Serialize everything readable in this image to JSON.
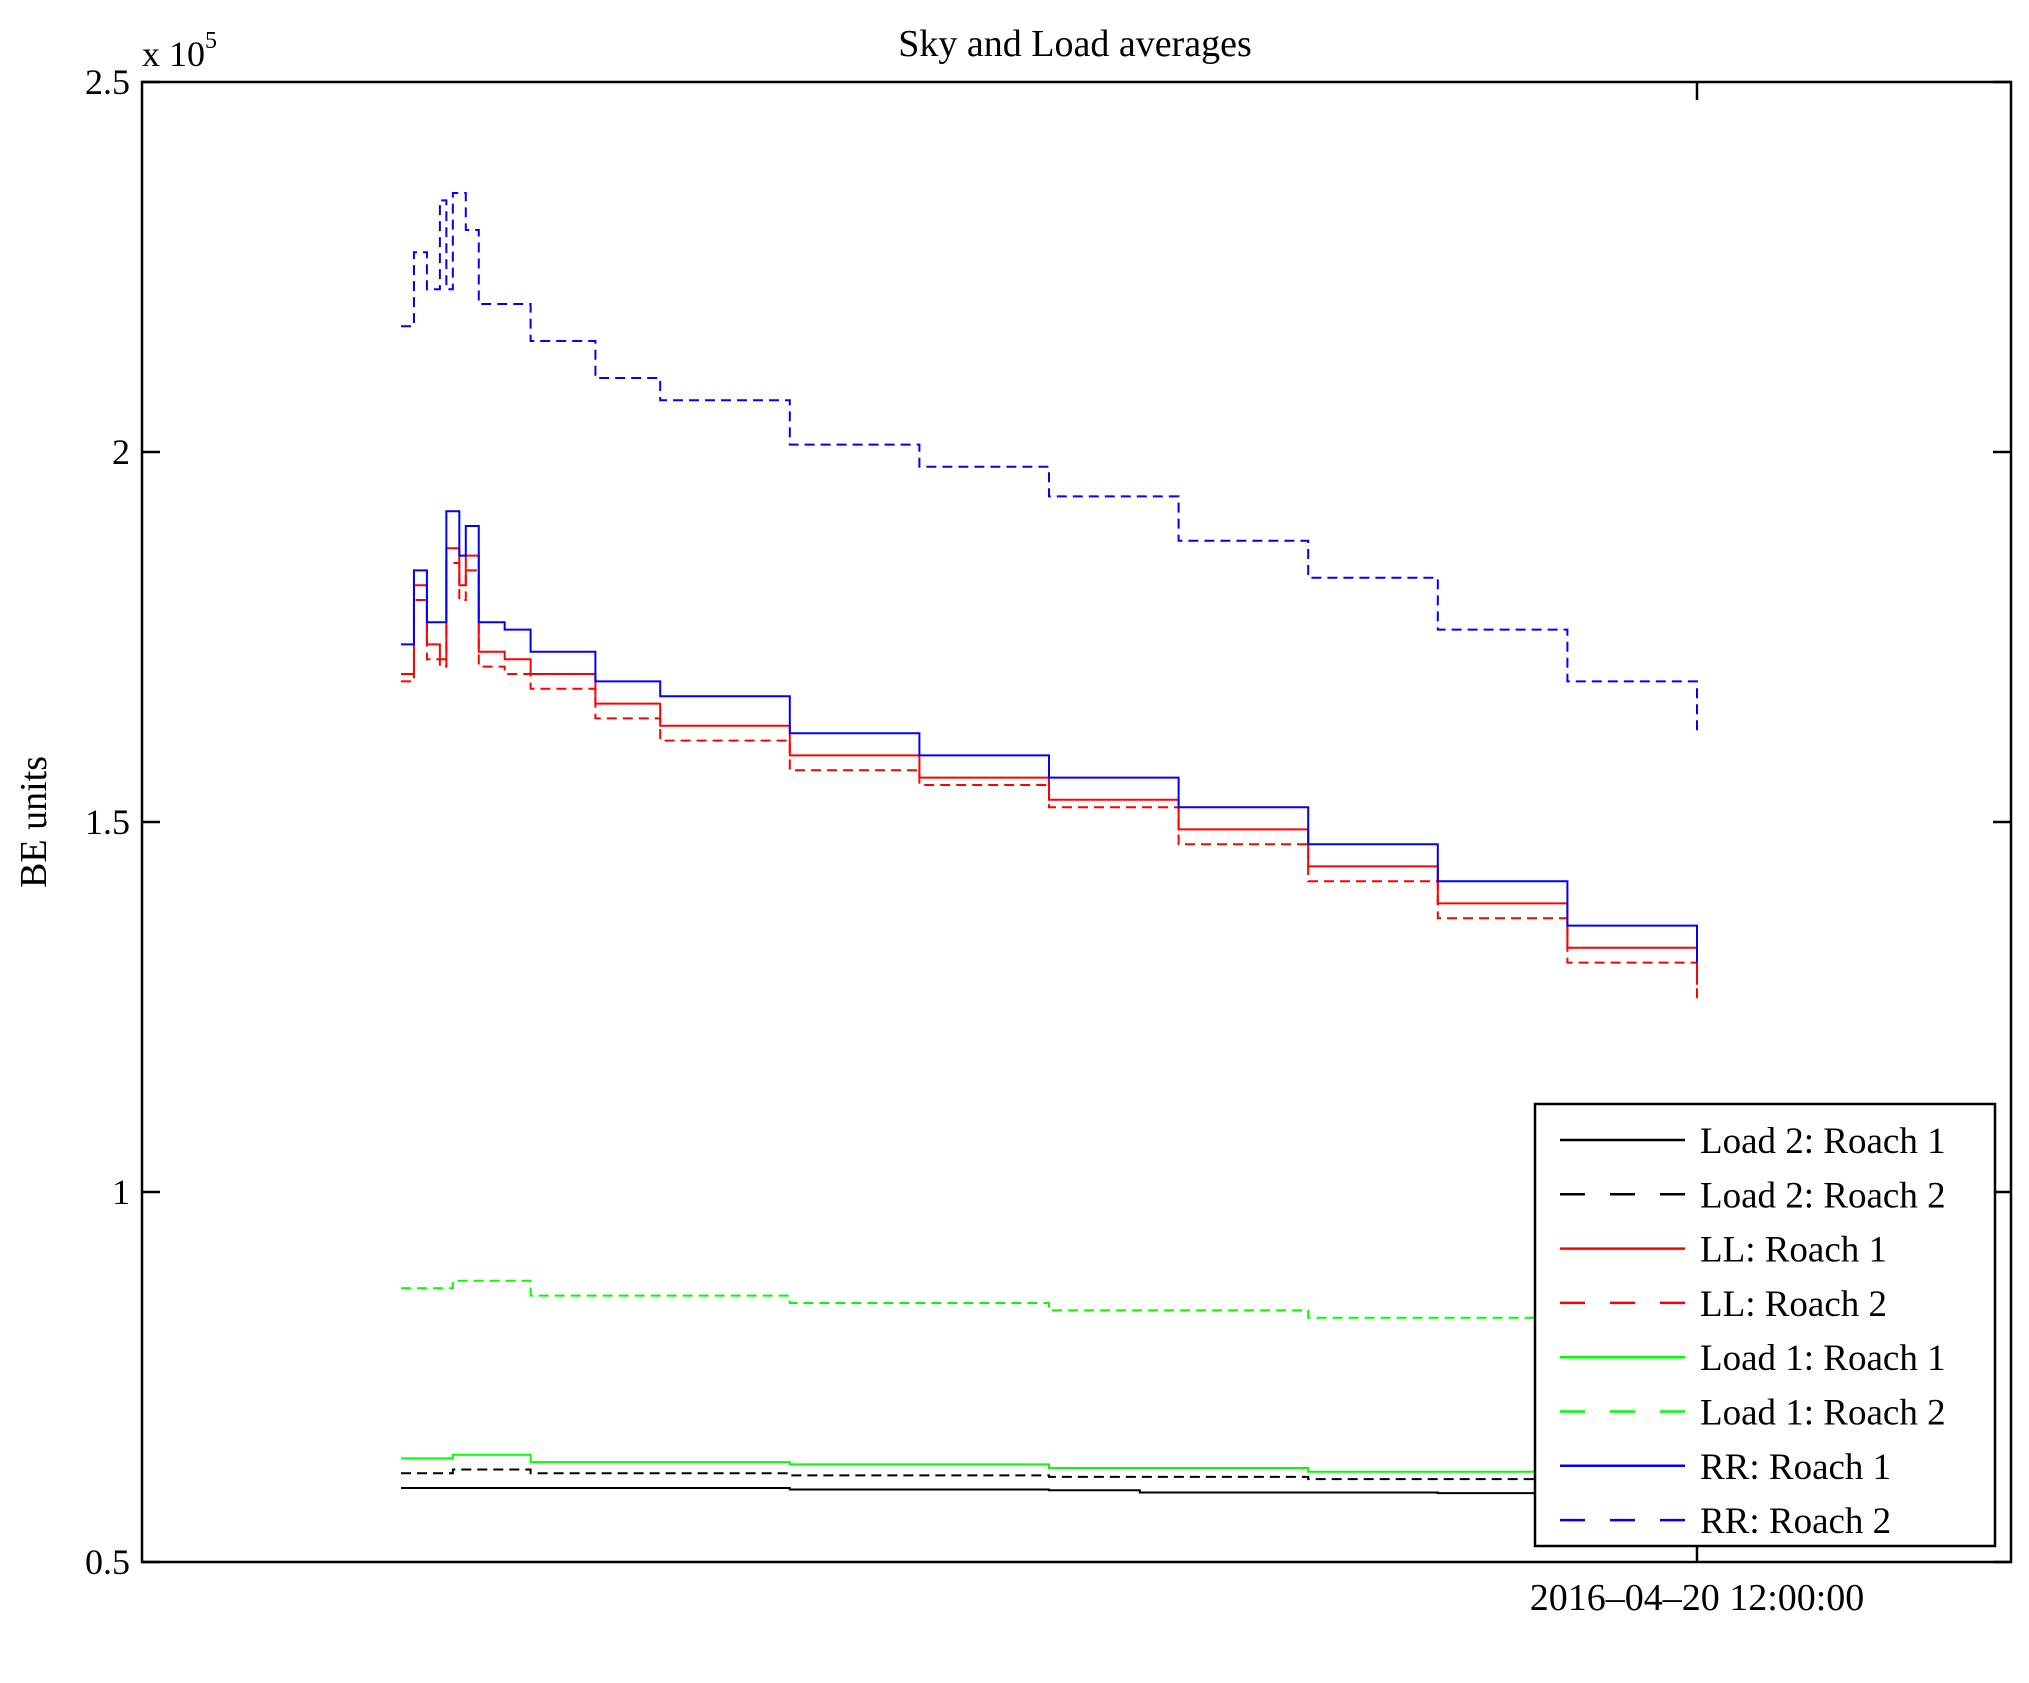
{
  "chart_data": {
    "type": "line",
    "title": "Sky and Load averages",
    "xlabel": "",
    "ylabel": "BE units",
    "y_multiplier_label": "x 10",
    "y_multiplier_exponent": "5",
    "ylim": [
      0.5,
      2.5
    ],
    "yticks": [
      0.5,
      1,
      1.5,
      2,
      2.5
    ],
    "ytick_labels": [
      "0.5",
      "1",
      "1.5",
      "2",
      "2.5"
    ],
    "x_note": "x = fraction of time span from first sample to the labelled tick",
    "xlim": [
      -0.22,
      1.27
    ],
    "xticks": [
      1
    ],
    "xtick_labels": [
      "2016–04–20 12:00:00"
    ],
    "grid": false,
    "legend_position": "bottom-right",
    "series": [
      {
        "name": "Load 2: Roach 1",
        "color": "#000000",
        "dash": false,
        "x": [
          0,
          0.05,
          0.3,
          0.5,
          0.57,
          0.8,
          1
        ],
        "y": [
          0.6,
          0.6,
          0.598,
          0.597,
          0.594,
          0.593,
          0.59
        ]
      },
      {
        "name": "Load 2: Roach 2",
        "color": "#000000",
        "dash": true,
        "x": [
          0,
          0.04,
          0.1,
          0.3,
          0.5,
          0.7,
          0.9,
          1
        ],
        "y": [
          0.62,
          0.625,
          0.62,
          0.617,
          0.615,
          0.612,
          0.608,
          0.605
        ]
      },
      {
        "name": "LL: Roach 1",
        "color": "#ff0000",
        "dash": false,
        "x": [
          0,
          0.01,
          0.02,
          0.03,
          0.035,
          0.045,
          0.05,
          0.06,
          0.08,
          0.1,
          0.15,
          0.2,
          0.3,
          0.4,
          0.5,
          0.6,
          0.7,
          0.8,
          0.9,
          1
        ],
        "y": [
          1.7,
          1.82,
          1.74,
          1.72,
          1.87,
          1.82,
          1.86,
          1.73,
          1.72,
          1.7,
          1.66,
          1.63,
          1.59,
          1.56,
          1.53,
          1.49,
          1.44,
          1.39,
          1.33,
          1.28
        ]
      },
      {
        "name": "LL: Roach 2",
        "color": "#ff0000",
        "dash": true,
        "x": [
          0,
          0.01,
          0.02,
          0.03,
          0.035,
          0.045,
          0.05,
          0.06,
          0.08,
          0.1,
          0.15,
          0.2,
          0.3,
          0.4,
          0.5,
          0.6,
          0.7,
          0.8,
          0.9,
          1
        ],
        "y": [
          1.69,
          1.8,
          1.72,
          1.71,
          1.85,
          1.8,
          1.84,
          1.71,
          1.7,
          1.68,
          1.64,
          1.61,
          1.57,
          1.55,
          1.52,
          1.47,
          1.42,
          1.37,
          1.31,
          1.26
        ]
      },
      {
        "name": "Load 1: Roach 1",
        "color": "#00ff00",
        "dash": false,
        "x": [
          0,
          0.04,
          0.1,
          0.3,
          0.5,
          0.7,
          0.9,
          1
        ],
        "y": [
          0.64,
          0.645,
          0.635,
          0.632,
          0.627,
          0.622,
          0.616,
          0.612
        ]
      },
      {
        "name": "Load 1: Roach 2",
        "color": "#00ff00",
        "dash": true,
        "x": [
          0,
          0.04,
          0.1,
          0.3,
          0.5,
          0.7,
          0.9,
          1
        ],
        "y": [
          0.87,
          0.88,
          0.86,
          0.85,
          0.84,
          0.83,
          0.82,
          0.818
        ]
      },
      {
        "name": "RR: Roach 1",
        "color": "#0000ff",
        "dash": false,
        "x": [
          0,
          0.01,
          0.02,
          0.03,
          0.035,
          0.045,
          0.05,
          0.06,
          0.08,
          0.1,
          0.15,
          0.2,
          0.3,
          0.4,
          0.5,
          0.6,
          0.7,
          0.8,
          0.9,
          1
        ],
        "y": [
          1.74,
          1.84,
          1.77,
          1.77,
          1.92,
          1.86,
          1.9,
          1.77,
          1.76,
          1.73,
          1.69,
          1.67,
          1.62,
          1.59,
          1.56,
          1.52,
          1.47,
          1.42,
          1.36,
          1.31
        ]
      },
      {
        "name": "RR: Roach 2",
        "color": "#0000ff",
        "dash": true,
        "x": [
          0,
          0.01,
          0.02,
          0.03,
          0.035,
          0.04,
          0.05,
          0.06,
          0.075,
          0.1,
          0.15,
          0.2,
          0.3,
          0.4,
          0.5,
          0.6,
          0.7,
          0.8,
          0.9,
          1
        ],
        "y": [
          2.17,
          2.27,
          2.22,
          2.34,
          2.22,
          2.35,
          2.3,
          2.2,
          2.2,
          2.15,
          2.1,
          2.07,
          2.01,
          1.98,
          1.94,
          1.88,
          1.83,
          1.76,
          1.69,
          1.62
        ]
      }
    ]
  }
}
